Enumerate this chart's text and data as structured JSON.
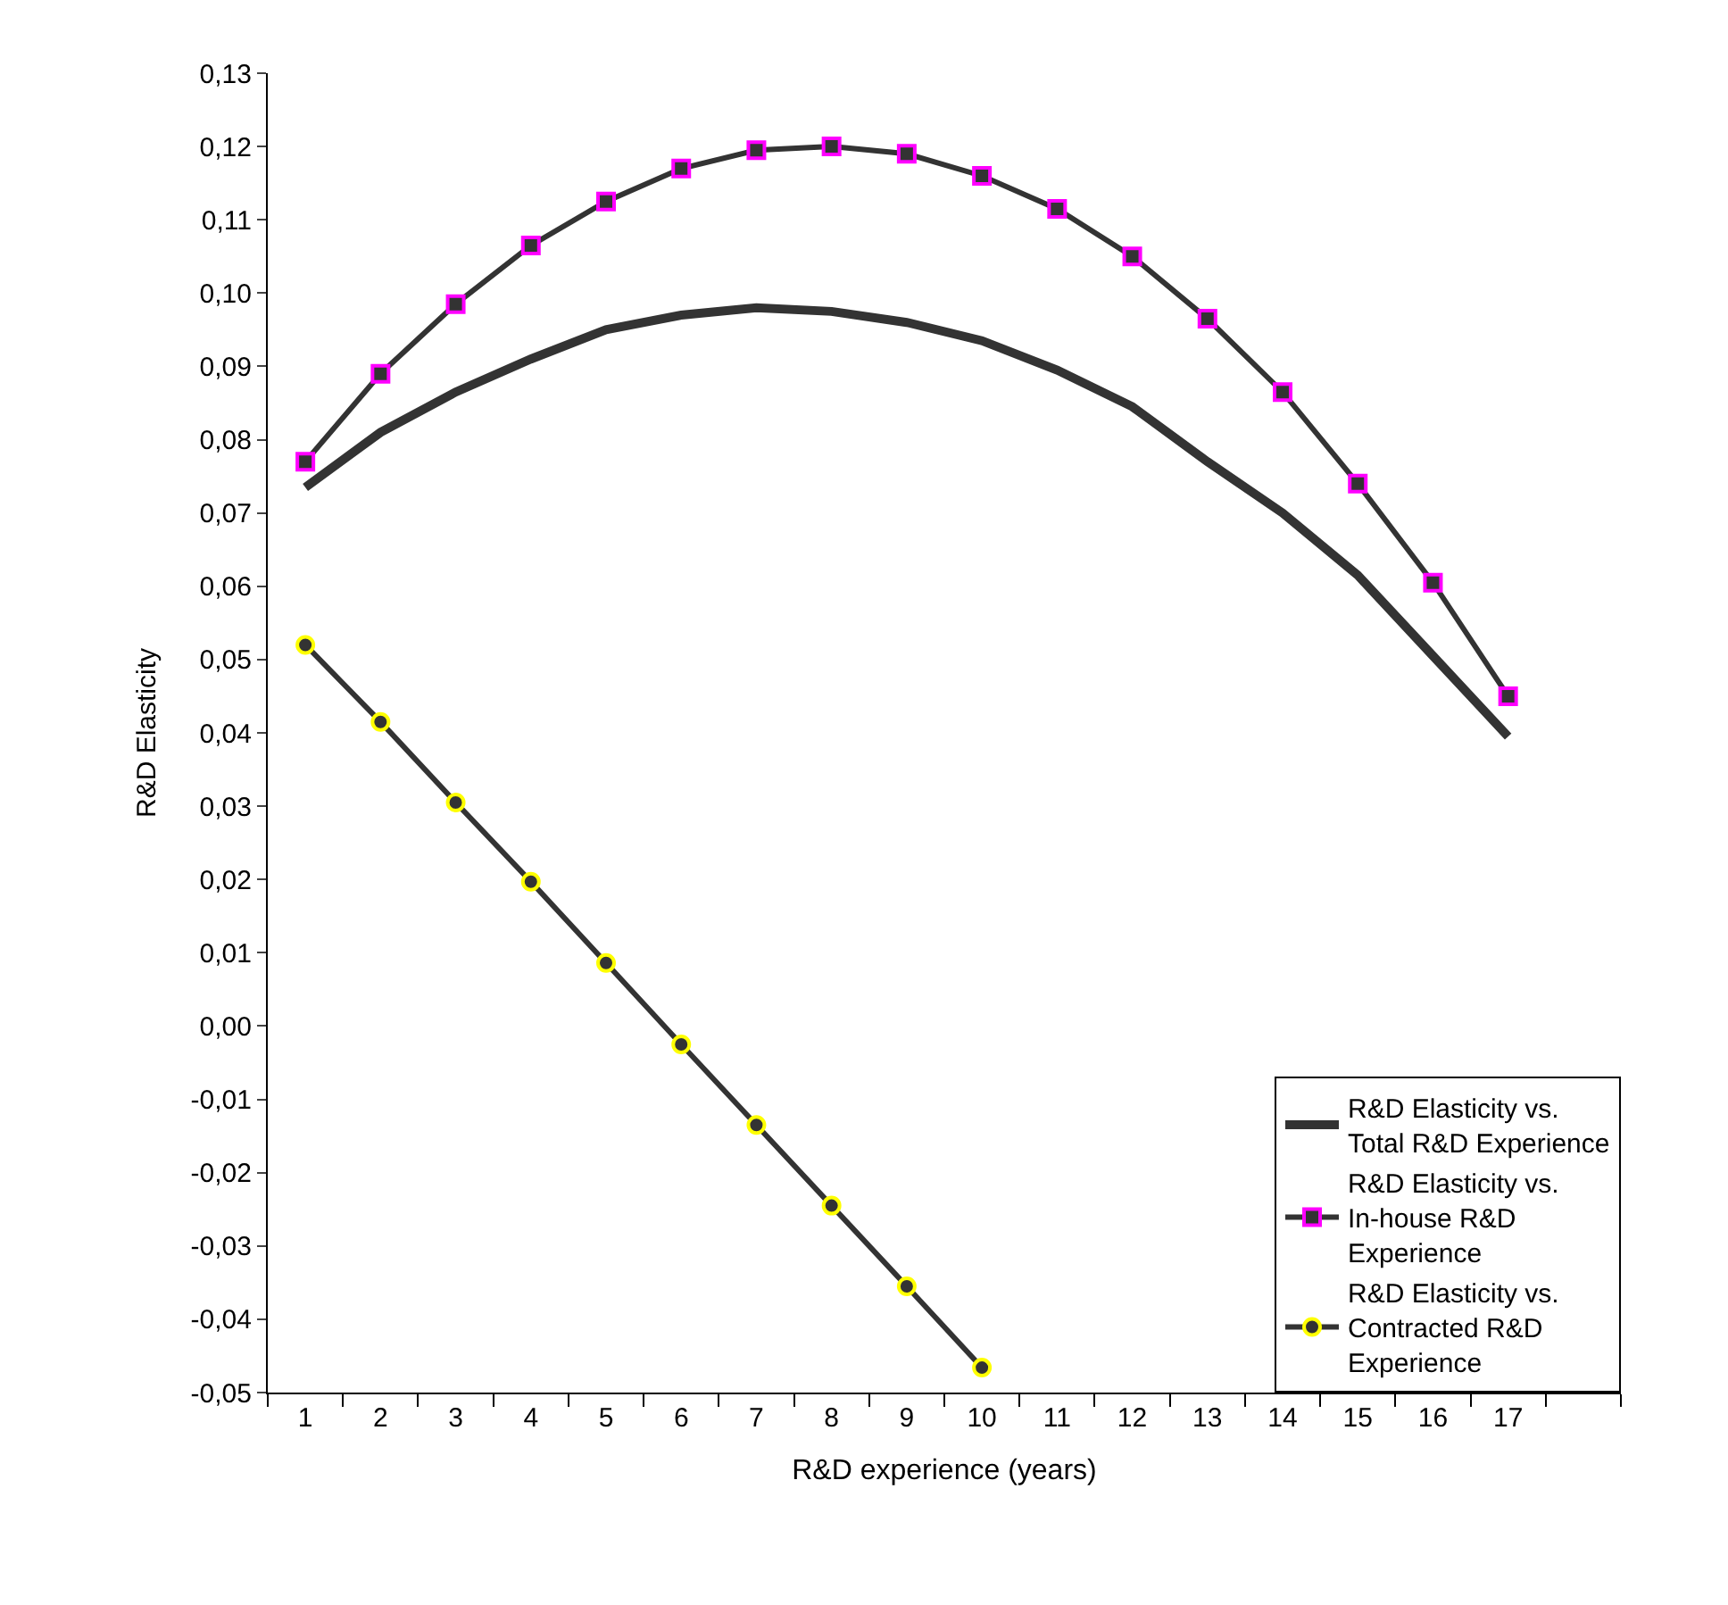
{
  "chart_data": {
    "type": "line",
    "xlabel": "R&D experience (years)",
    "ylabel": "R&D Elasticity",
    "x": [
      1,
      2,
      3,
      4,
      5,
      6,
      7,
      8,
      9,
      10,
      11,
      12,
      13,
      14,
      15,
      16,
      17
    ],
    "series": [
      {
        "name": "R&D Elasticity vs. Total R&D Experience",
        "color": "#333333",
        "marker": "none",
        "values": [
          0.0735,
          0.081,
          0.0865,
          0.091,
          0.095,
          0.097,
          0.098,
          0.0975,
          0.096,
          0.0935,
          0.0895,
          0.0845,
          0.077,
          0.07,
          0.0615,
          0.0505,
          0.0395
        ]
      },
      {
        "name": "R&D Elasticity vs. In-house R&D Experience",
        "color": "#ff00ff",
        "marker": "square",
        "values": [
          0.077,
          0.089,
          0.0985,
          0.1065,
          0.1125,
          0.117,
          0.1195,
          0.12,
          0.119,
          0.116,
          0.1115,
          0.105,
          0.0965,
          0.0865,
          0.074,
          0.0605,
          0.045
        ]
      },
      {
        "name": "R&D Elasticity vs. Contracted R&D Experience",
        "color": "#ffff00",
        "marker": "circle",
        "values": [
          0.052,
          0.0415,
          0.0305,
          0.0197,
          0.0086,
          -0.0025,
          -0.0135,
          -0.0245,
          -0.0355,
          -0.0466,
          null,
          null,
          null,
          null,
          null,
          null,
          null
        ]
      }
    ],
    "xlim": [
      0.5,
      18.5
    ],
    "xticks": [
      1,
      2,
      3,
      4,
      5,
      6,
      7,
      8,
      9,
      10,
      11,
      12,
      13,
      14,
      15,
      16,
      17
    ],
    "ylim": [
      -0.05,
      0.13
    ],
    "yticks": [
      {
        "value": -0.05,
        "label": "-0,05"
      },
      {
        "value": -0.04,
        "label": "-0,04"
      },
      {
        "value": -0.03,
        "label": "-0,03"
      },
      {
        "value": -0.02,
        "label": "-0,02"
      },
      {
        "value": -0.01,
        "label": "-0,01"
      },
      {
        "value": 0.0,
        "label": "0,00"
      },
      {
        "value": 0.01,
        "label": "0,01"
      },
      {
        "value": 0.02,
        "label": "0,02"
      },
      {
        "value": 0.03,
        "label": "0,03"
      },
      {
        "value": 0.04,
        "label": "0,04"
      },
      {
        "value": 0.05,
        "label": "0,05"
      },
      {
        "value": 0.06,
        "label": "0,06"
      },
      {
        "value": 0.07,
        "label": "0,07"
      },
      {
        "value": 0.08,
        "label": "0,08"
      },
      {
        "value": 0.09,
        "label": "0,09"
      },
      {
        "value": 0.1,
        "label": "0,10"
      },
      {
        "value": 0.11,
        "label": "0,11"
      },
      {
        "value": 0.12,
        "label": "0,12"
      },
      {
        "value": 0.13,
        "label": "0,13"
      }
    ],
    "legend": "bottom right"
  }
}
